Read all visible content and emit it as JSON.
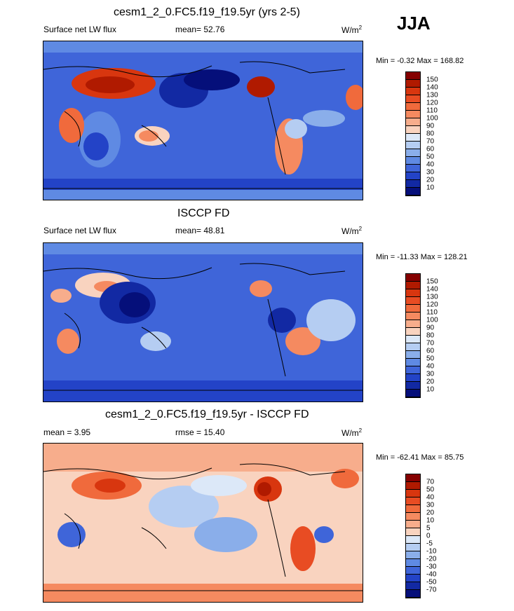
{
  "season": "JJA",
  "panels": [
    {
      "title": "cesm1_2_0.FC5.f19_f19.5yr (yrs 2-5)",
      "variable": "Surface net LW flux",
      "stat_text": "mean=  52.76",
      "units_base": "W/m",
      "units_exp": "2",
      "minmax": "Min =  -0.32 Max = 168.82",
      "colorbar_ticks": [
        "150",
        "140",
        "130",
        "120",
        "110",
        "100",
        "90",
        "80",
        "70",
        "60",
        "50",
        "40",
        "30",
        "20",
        "10"
      ],
      "colors": [
        "#850000",
        "#b01a00",
        "#d8360f",
        "#e84c23",
        "#f06a3c",
        "#f58a60",
        "#f7ad8c",
        "#f9d3bf",
        "#dce8f8",
        "#b5cdf2",
        "#8aaeea",
        "#5f8ae3",
        "#3f65d9",
        "#2343c7",
        "#1229a3",
        "#050f7a"
      ]
    },
    {
      "title": "ISCCP FD",
      "variable": "Surface net LW flux",
      "stat_text": "mean=  48.81",
      "units_base": "W/m",
      "units_exp": "2",
      "minmax": "Min = -11.33 Max = 128.21",
      "colorbar_ticks": [
        "150",
        "140",
        "130",
        "120",
        "110",
        "100",
        "90",
        "80",
        "70",
        "60",
        "50",
        "40",
        "30",
        "20",
        "10"
      ],
      "colors": [
        "#850000",
        "#b01a00",
        "#d8360f",
        "#e84c23",
        "#f06a3c",
        "#f58a60",
        "#f7ad8c",
        "#f9d3bf",
        "#dce8f8",
        "#b5cdf2",
        "#8aaeea",
        "#5f8ae3",
        "#3f65d9",
        "#2343c7",
        "#1229a3",
        "#050f7a"
      ]
    },
    {
      "title": "cesm1_2_0.FC5.f19_f19.5yr - ISCCP FD",
      "mean_text": "mean =  3.95",
      "stat_text": "rmse =  15.40",
      "units_base": "W/m",
      "units_exp": "2",
      "minmax": "Min = -62.41 Max =  85.75",
      "colorbar_ticks": [
        "70",
        "50",
        "40",
        "30",
        "20",
        "10",
        "5",
        "0",
        "-5",
        "-10",
        "-20",
        "-30",
        "-40",
        "-50",
        "-70"
      ],
      "colors": [
        "#850000",
        "#b01a00",
        "#d8360f",
        "#e84c23",
        "#f06a3c",
        "#f58a60",
        "#f7ad8c",
        "#f9d3bf",
        "#dce8f8",
        "#b5cdf2",
        "#8aaeea",
        "#5f8ae3",
        "#3f65d9",
        "#2343c7",
        "#1229a3",
        "#050f7a"
      ]
    }
  ]
}
